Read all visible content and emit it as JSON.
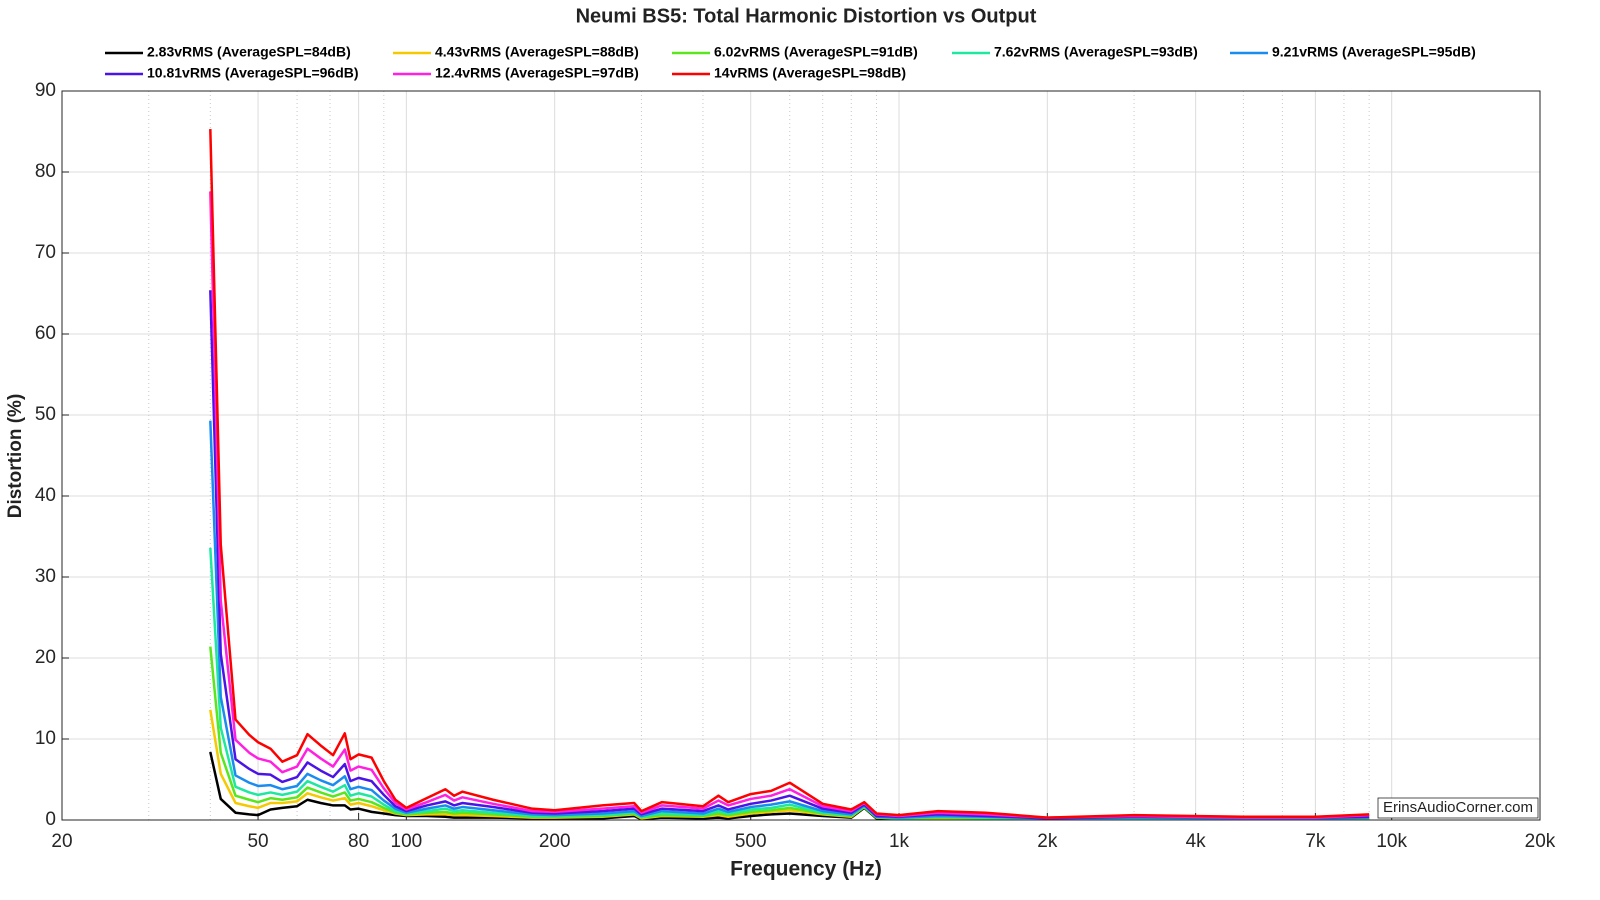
{
  "chart_data": {
    "type": "line",
    "title": "Neumi BS5: Total Harmonic Distortion vs Output",
    "x_label": "Frequency (Hz)",
    "y_label": "Distortion (%)",
    "annotation": "ErinsAudioCorner.com",
    "x_scale": "log",
    "grid": true,
    "legend_position": "top",
    "xlim": [
      20,
      20000
    ],
    "ylim": [
      0,
      90
    ],
    "xticks": [
      20,
      50,
      80,
      100,
      200,
      500,
      {
        "value": 1000,
        "label": "1k"
      },
      {
        "value": 2000,
        "label": "2k"
      },
      {
        "value": 4000,
        "label": "4k"
      },
      {
        "value": 7000,
        "label": "7k"
      },
      {
        "value": 10000,
        "label": "10k"
      },
      {
        "value": 20000,
        "label": "20k"
      }
    ],
    "x_minor_ticks": [
      30,
      40,
      60,
      70,
      90,
      300,
      400,
      600,
      700,
      800,
      900,
      3000,
      5000,
      6000,
      8000,
      9000
    ],
    "yticks": [
      0,
      10,
      20,
      30,
      40,
      50,
      60,
      70,
      80,
      90
    ],
    "x": [
      40,
      42,
      45,
      48,
      50,
      53,
      56,
      60,
      63,
      67,
      71,
      75,
      77,
      80,
      85,
      90,
      95,
      100,
      110,
      120,
      125,
      130,
      150,
      180,
      200,
      250,
      290,
      300,
      330,
      400,
      430,
      450,
      500,
      550,
      600,
      700,
      800,
      850,
      900,
      1000,
      1200,
      1500,
      2000,
      3000,
      5000,
      7000,
      9000
    ],
    "series": [
      {
        "name": "2.83vRMS (AverageSPL=84dB)",
        "color": "#000000",
        "values": [
          8.4,
          2.6,
          0.9,
          0.7,
          0.6,
          1.3,
          1.5,
          1.7,
          2.5,
          2.1,
          1.8,
          1.8,
          1.3,
          1.4,
          1.0,
          0.8,
          0.6,
          0.5,
          0.5,
          0.4,
          0.3,
          0.3,
          0.3,
          0.2,
          0.2,
          0.2,
          0.5,
          0.1,
          0.3,
          0.2,
          0.3,
          0.2,
          0.5,
          0.7,
          0.8,
          0.5,
          0.3,
          1.5,
          0.2,
          0.1,
          0.1,
          0.1,
          0.1,
          0.1,
          0.1,
          0.1,
          0.1
        ]
      },
      {
        "name": "4.43vRMS (AverageSPL=88dB)",
        "color": "#f5c800",
        "values": [
          13.6,
          5.7,
          2.1,
          1.7,
          1.5,
          2.1,
          2.1,
          2.3,
          3.3,
          2.8,
          2.4,
          2.7,
          1.9,
          2.1,
          1.7,
          1.2,
          0.8,
          0.6,
          0.7,
          0.7,
          0.6,
          0.6,
          0.5,
          0.3,
          0.3,
          0.4,
          0.7,
          0.2,
          0.5,
          0.4,
          0.6,
          0.4,
          0.8,
          1.0,
          1.2,
          0.7,
          0.4,
          1.6,
          0.3,
          0.2,
          0.2,
          0.2,
          0.1,
          0.2,
          0.1,
          0.1,
          0.2
        ]
      },
      {
        "name": "6.02vRMS (AverageSPL=91dB)",
        "color": "#5ae61e",
        "values": [
          21.4,
          8.3,
          3.0,
          2.5,
          2.2,
          2.7,
          2.5,
          2.8,
          4.0,
          3.4,
          2.9,
          3.4,
          2.4,
          2.6,
          2.2,
          1.5,
          0.9,
          0.7,
          0.9,
          1.0,
          0.8,
          0.9,
          0.7,
          0.4,
          0.4,
          0.5,
          0.8,
          0.3,
          0.6,
          0.5,
          0.8,
          0.6,
          1.0,
          1.2,
          1.5,
          0.8,
          0.5,
          1.6,
          0.3,
          0.2,
          0.3,
          0.2,
          0.1,
          0.2,
          0.2,
          0.2,
          0.2
        ]
      },
      {
        "name": "7.62vRMS (AverageSPL=93dB)",
        "color": "#1ee8a0",
        "values": [
          33.6,
          11.4,
          4.1,
          3.4,
          3.1,
          3.4,
          3.1,
          3.5,
          4.8,
          4.1,
          3.5,
          4.3,
          3.0,
          3.3,
          2.9,
          1.9,
          1.1,
          0.8,
          1.1,
          1.4,
          1.1,
          1.2,
          0.9,
          0.5,
          0.5,
          0.6,
          0.9,
          0.4,
          0.8,
          0.6,
          1.1,
          0.8,
          1.3,
          1.5,
          1.9,
          0.9,
          0.6,
          1.7,
          0.4,
          0.2,
          0.4,
          0.3,
          0.2,
          0.2,
          0.2,
          0.2,
          0.3
        ]
      },
      {
        "name": "9.21vRMS (AverageSPL=95dB)",
        "color": "#1a8cf0",
        "values": [
          49.3,
          15.2,
          5.5,
          4.6,
          4.2,
          4.3,
          3.8,
          4.2,
          5.7,
          4.9,
          4.3,
          5.4,
          3.8,
          4.1,
          3.7,
          2.4,
          1.4,
          0.9,
          1.4,
          1.8,
          1.4,
          1.6,
          1.2,
          0.7,
          0.6,
          0.8,
          1.1,
          0.5,
          1.1,
          0.8,
          1.4,
          1.0,
          1.6,
          1.9,
          2.3,
          1.1,
          0.7,
          1.8,
          0.4,
          0.3,
          0.5,
          0.4,
          0.2,
          0.3,
          0.2,
          0.2,
          0.3
        ]
      },
      {
        "name": "10.81vRMS (AverageSPL=96dB)",
        "color": "#4b14e6",
        "values": [
          65.4,
          20.5,
          7.5,
          6.3,
          5.7,
          5.6,
          4.7,
          5.3,
          7.1,
          6.1,
          5.3,
          6.9,
          4.8,
          5.2,
          4.8,
          3.1,
          1.7,
          1.1,
          1.8,
          2.3,
          1.8,
          2.1,
          1.6,
          0.9,
          0.8,
          1.1,
          1.4,
          0.7,
          1.4,
          1.1,
          1.8,
          1.3,
          2.0,
          2.4,
          3.0,
          1.4,
          0.9,
          1.9,
          0.5,
          0.4,
          0.7,
          0.5,
          0.2,
          0.4,
          0.3,
          0.3,
          0.4
        ]
      },
      {
        "name": "12.4vRMS (AverageSPL=97dB)",
        "color": "#ff20e0",
        "values": [
          77.6,
          27.1,
          9.9,
          8.3,
          7.6,
          7.2,
          5.9,
          6.6,
          8.8,
          7.6,
          6.6,
          8.7,
          6.1,
          6.6,
          6.2,
          3.9,
          2.1,
          1.3,
          2.2,
          3.1,
          2.4,
          2.8,
          2.0,
          1.1,
          1.0,
          1.4,
          1.7,
          0.9,
          1.8,
          1.4,
          2.4,
          1.8,
          2.6,
          3.0,
          3.8,
          1.7,
          1.1,
          2.1,
          0.7,
          0.5,
          0.9,
          0.7,
          0.3,
          0.5,
          0.3,
          0.3,
          0.6
        ]
      },
      {
        "name": "14vRMS (AverageSPL=98dB)",
        "color": "#ff0000",
        "values": [
          85.3,
          34,
          12.4,
          10.5,
          9.6,
          8.8,
          7.2,
          8,
          10.6,
          9.2,
          8,
          10.7,
          7.5,
          8.1,
          7.7,
          4.8,
          2.5,
          1.5,
          2.7,
          3.8,
          3,
          3.5,
          2.5,
          1.4,
          1.2,
          1.8,
          2.1,
          1.1,
          2.2,
          1.7,
          3,
          2.2,
          3.2,
          3.6,
          4.6,
          2,
          1.3,
          2.2,
          0.8,
          0.6,
          1.1,
          0.9,
          0.3,
          0.6,
          0.4,
          0.4,
          0.7
        ]
      }
    ]
  }
}
